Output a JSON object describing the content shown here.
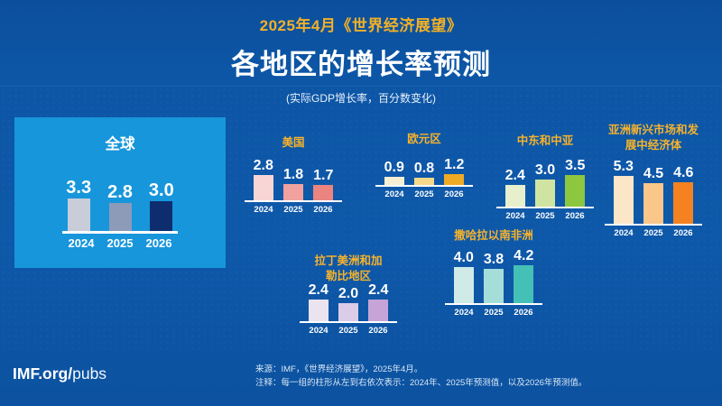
{
  "header": {
    "kicker": "2025年4月《世界经济展望》",
    "title": "各地区的增长率预测",
    "subtitle": "(实际GDP增长率，百分数变化)"
  },
  "colors": {
    "background": "#0d56a6",
    "panel": "#1796db",
    "gold": "#f7b32b",
    "white": "#ffffff"
  },
  "chart_data": [
    {
      "type": "bar",
      "region": "全球",
      "categories": [
        "2024",
        "2025",
        "2026"
      ],
      "values": [
        3.3,
        2.8,
        3.0
      ],
      "colors": [
        "#c9cdd9",
        "#8d9ab8",
        "#0d2d6e"
      ],
      "title": "全球",
      "ylabel": "",
      "legend": "none",
      "grid": false
    },
    {
      "type": "bar",
      "region": "美国",
      "categories": [
        "2024",
        "2025",
        "2026"
      ],
      "values": [
        2.8,
        1.8,
        1.7
      ],
      "colors": [
        "#f8d6d5",
        "#f2a29e",
        "#e98480"
      ],
      "grid": false
    },
    {
      "type": "bar",
      "region": "欧元区",
      "categories": [
        "2024",
        "2025",
        "2026"
      ],
      "values": [
        0.9,
        0.8,
        1.2
      ],
      "colors": [
        "#f7efd3",
        "#f5d88a",
        "#efaa24"
      ],
      "grid": false
    },
    {
      "type": "bar",
      "region": "中东和中亚",
      "categories": [
        "2024",
        "2025",
        "2026"
      ],
      "values": [
        2.4,
        3.0,
        3.5
      ],
      "colors": [
        "#e7efcd",
        "#cfe4a1",
        "#8dc63f"
      ],
      "grid": false
    },
    {
      "type": "bar",
      "region": "亚洲新兴市场和发展中经济体",
      "categories": [
        "2024",
        "2025",
        "2026"
      ],
      "values": [
        5.3,
        4.5,
        4.6
      ],
      "colors": [
        "#fce6c8",
        "#fbc689",
        "#f58220"
      ],
      "grid": false
    },
    {
      "type": "bar",
      "region": "撒哈拉以南非洲",
      "categories": [
        "2024",
        "2025",
        "2026"
      ],
      "values": [
        4.0,
        3.8,
        4.2
      ],
      "colors": [
        "#cfeae7",
        "#a5ded9",
        "#45c0b7"
      ],
      "grid": false
    },
    {
      "type": "bar",
      "region": "拉丁美洲和加勒比地区",
      "categories": [
        "2024",
        "2025",
        "2026"
      ],
      "values": [
        2.4,
        2.0,
        2.4
      ],
      "colors": [
        "#ebe3f0",
        "#dbcce8",
        "#c7a4d7"
      ],
      "grid": false
    }
  ],
  "footer": {
    "source": "来源：IMF，《世界经济展望》，2025年4月。",
    "note": "注释：每一组的柱形从左到右依次表示：2024年、2025年预测值，以及2026年预测值。",
    "brand_bold": "IMF.org/",
    "brand_light": "pubs"
  }
}
